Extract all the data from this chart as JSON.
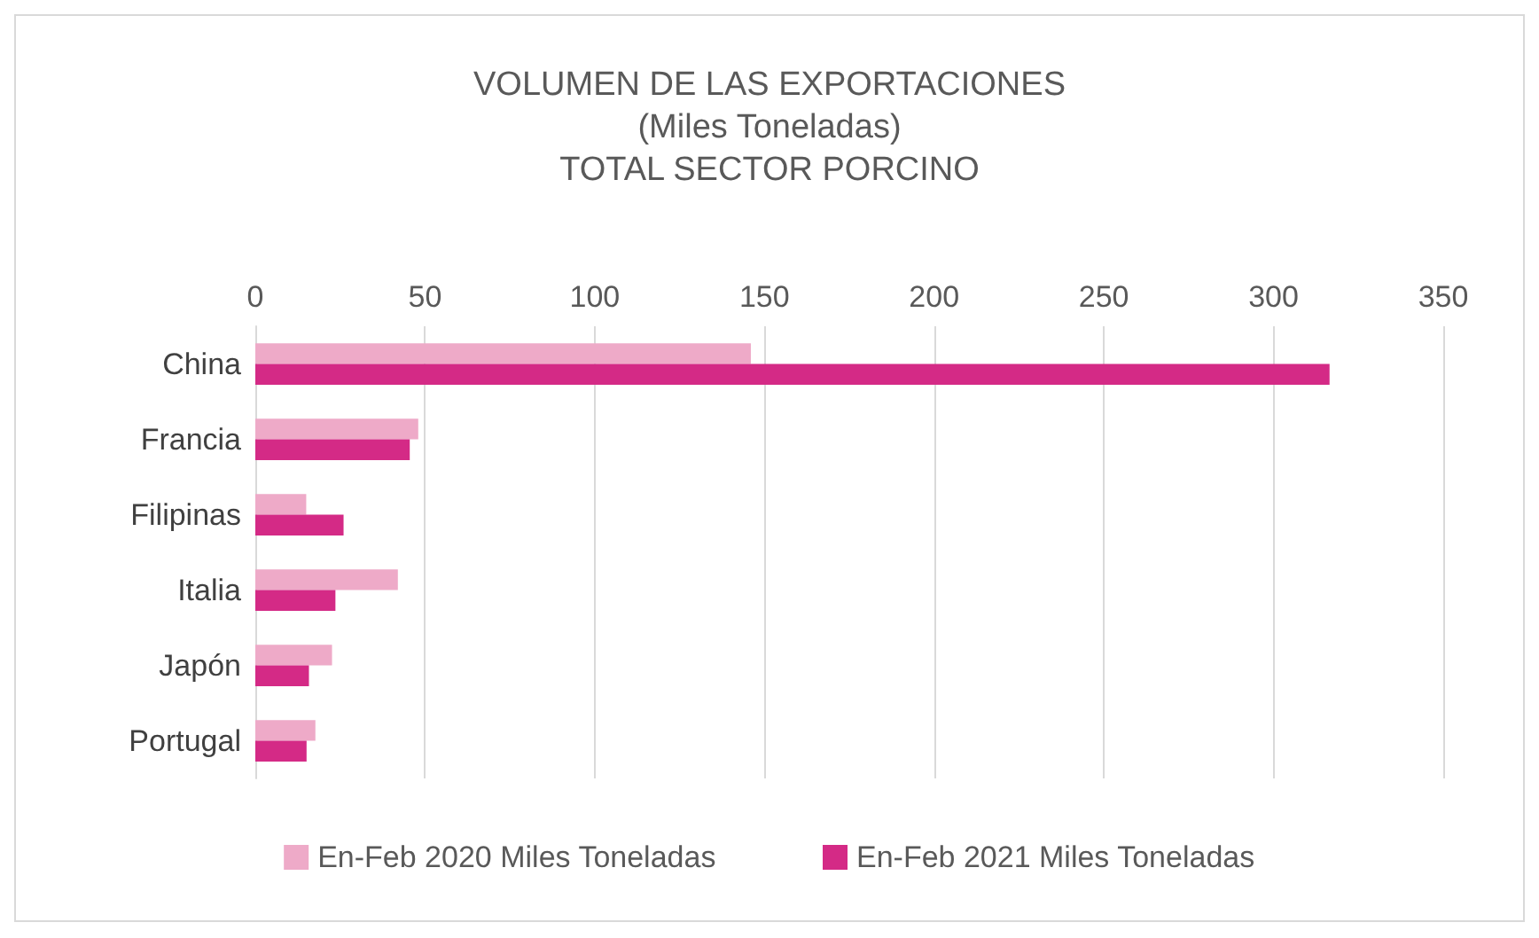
{
  "chart_data": {
    "type": "bar",
    "orientation": "horizontal",
    "title": "VOLUMEN DE LAS EXPORTACIONES\n(Miles Toneladas)\nTOTAL SECTOR PORCINO",
    "categories": [
      "China",
      "Francia",
      "Filipinas",
      "Italia",
      "Japón",
      "Portugal"
    ],
    "series": [
      {
        "name": "En-Feb 2020 Miles Toneladas",
        "color": "#eeaac8",
        "values": [
          146,
          48,
          15,
          42,
          22.6,
          17.7
        ]
      },
      {
        "name": "En-Feb 2021 Miles Toneladas",
        "color": "#d42a86",
        "values": [
          316.5,
          45.5,
          26,
          23.6,
          15.8,
          15.1
        ]
      }
    ],
    "xlim": [
      0,
      350
    ],
    "xticks": [
      0,
      50,
      100,
      150,
      200,
      250,
      300,
      350
    ],
    "grid": "x",
    "legend": "bottom"
  }
}
